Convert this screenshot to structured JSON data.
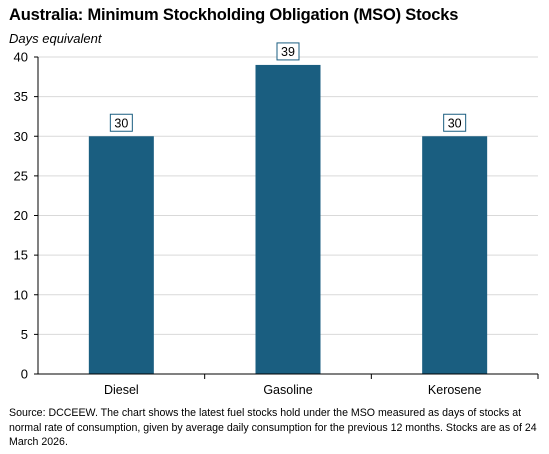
{
  "title": "Australia: Minimum Stockholding Obligation (MSO) Stocks",
  "subtitle": "Days equivalent",
  "source_note": "Source: DCCEEW. The chart shows the latest fuel stocks hold under the MSO measured as days of stocks at normal rate of consumption, given by average daily consumption for the previous 12 months. Stocks are as of 24 March 2026.",
  "colors": {
    "bar": "#1a5e80",
    "grid": "#d9d9d9",
    "axis": "#000000",
    "label_border": "#1a5e80"
  },
  "chart_data": {
    "type": "bar",
    "title": "Australia: Minimum Stockholding Obligation (MSO) Stocks",
    "ylabel": "Days equivalent",
    "xlabel": "",
    "categories": [
      "Diesel",
      "Gasoline",
      "Kerosene"
    ],
    "values": [
      30,
      39,
      30
    ],
    "data_labels": [
      "30",
      "39",
      "30"
    ],
    "ylim": [
      0,
      40
    ],
    "yticks": [
      0,
      5,
      10,
      15,
      20,
      25,
      30,
      35,
      40
    ],
    "grid": true,
    "legend": "none"
  }
}
